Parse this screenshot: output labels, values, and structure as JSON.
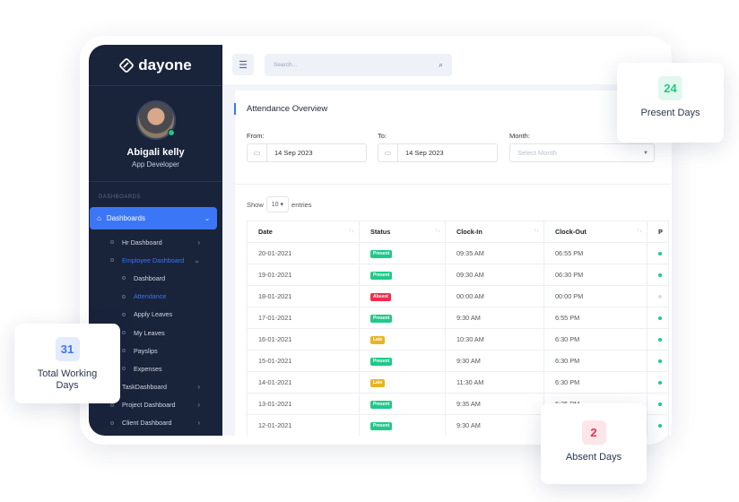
{
  "brand": "dayone",
  "user": {
    "name": "Abigali kelly",
    "role": "App Developer"
  },
  "sidebar": {
    "section": "DASHBOARDS",
    "active": "Dashboards",
    "items": [
      {
        "label": "Hr Dashboard",
        "level": 1,
        "arrow": "›"
      },
      {
        "label": "Employee Dashboard",
        "level": 1,
        "arrow": "⌄",
        "active": true
      },
      {
        "label": "Dashboard",
        "level": 2
      },
      {
        "label": "Attendance",
        "level": 2,
        "active": true
      },
      {
        "label": "Apply Leaves",
        "level": 2
      },
      {
        "label": "My Leaves",
        "level": 2
      },
      {
        "label": "Payslips",
        "level": 2
      },
      {
        "label": "Expenses",
        "level": 2
      },
      {
        "label": "TaskDashboard",
        "level": 1,
        "arrow": "›"
      },
      {
        "label": "Project Dashboard",
        "level": 1,
        "arrow": "›"
      },
      {
        "label": "Client Dashboard",
        "level": 1,
        "arrow": "›"
      }
    ]
  },
  "topbar": {
    "search_placeholder": "Search..."
  },
  "card": {
    "title": "Attendance Overview",
    "from_label": "From:",
    "from_value": "14 Sep 2023",
    "to_label": "To:",
    "to_value": "14 Sep 2023",
    "month_label": "Month:",
    "month_placeholder": "Select Month",
    "show": "Show",
    "entries_value": "10",
    "entries": "entries"
  },
  "table": {
    "columns": [
      "Date",
      "Status",
      "Clock-In",
      "Clock-Out",
      "P"
    ],
    "rows": [
      [
        "20-01-2021",
        "Present",
        "09:35 AM",
        "06:55 PM"
      ],
      [
        "19-01-2021",
        "Present",
        "09:30 AM",
        "06:30 PM"
      ],
      [
        "18-01-2021",
        "Absent",
        "00:00 AM",
        "00:00 PM"
      ],
      [
        "17-01-2021",
        "Present",
        "9:30 AM",
        "6:55 PM"
      ],
      [
        "16-01-2021",
        "Late",
        "10:30 AM",
        "6:30 PM"
      ],
      [
        "15-01-2021",
        "Present",
        "9:30 AM",
        "6:30 PM"
      ],
      [
        "14-01-2021",
        "Late",
        "11:30 AM",
        "6:30 PM"
      ],
      [
        "13-01-2021",
        "Present",
        "9:35 AM",
        "6:35 PM"
      ],
      [
        "12-01-2021",
        "Present",
        "9:30 AM",
        "6:30 PM"
      ]
    ]
  },
  "colors": {
    "Present": "#1fc98a",
    "Absent": "#ef2d4f",
    "Late": "#e8b423",
    "accent": "#3b76f6"
  },
  "stats": {
    "present": {
      "value": "24",
      "label": "Present Days"
    },
    "working": {
      "value": "31",
      "label": "Total Working Days"
    },
    "absent": {
      "value": "2",
      "label": "Absent Days"
    }
  }
}
